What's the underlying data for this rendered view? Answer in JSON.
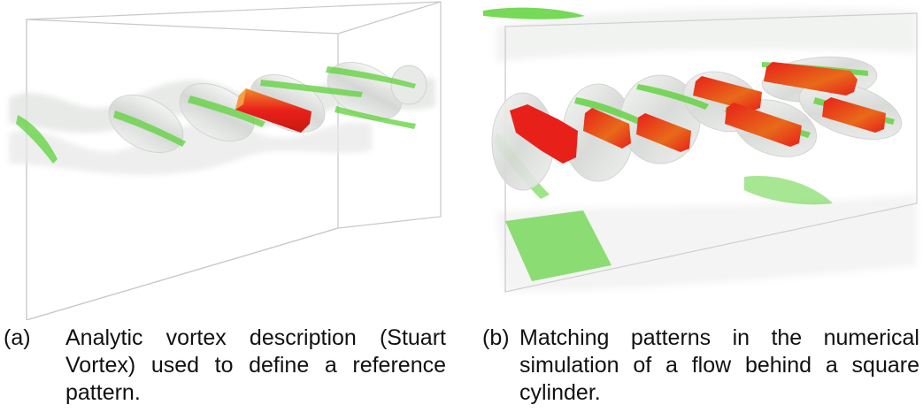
{
  "figure": {
    "panels": [
      {
        "id": "a",
        "label": "(a)",
        "caption": "Analytic vortex description (Stuart Vortex) used to define a reference pattern."
      },
      {
        "id": "b",
        "label": "(b)",
        "caption": "Matching patterns in the numerical simulation of a flow behind a square cylinder."
      }
    ],
    "colors": {
      "box_edge": "#c8c8c8",
      "surface_gray": "#d9dcd9",
      "surface_green": "#5ed23a",
      "match_red": "#e8201a",
      "match_orange": "#e86a1a",
      "background": "#ffffff"
    }
  }
}
